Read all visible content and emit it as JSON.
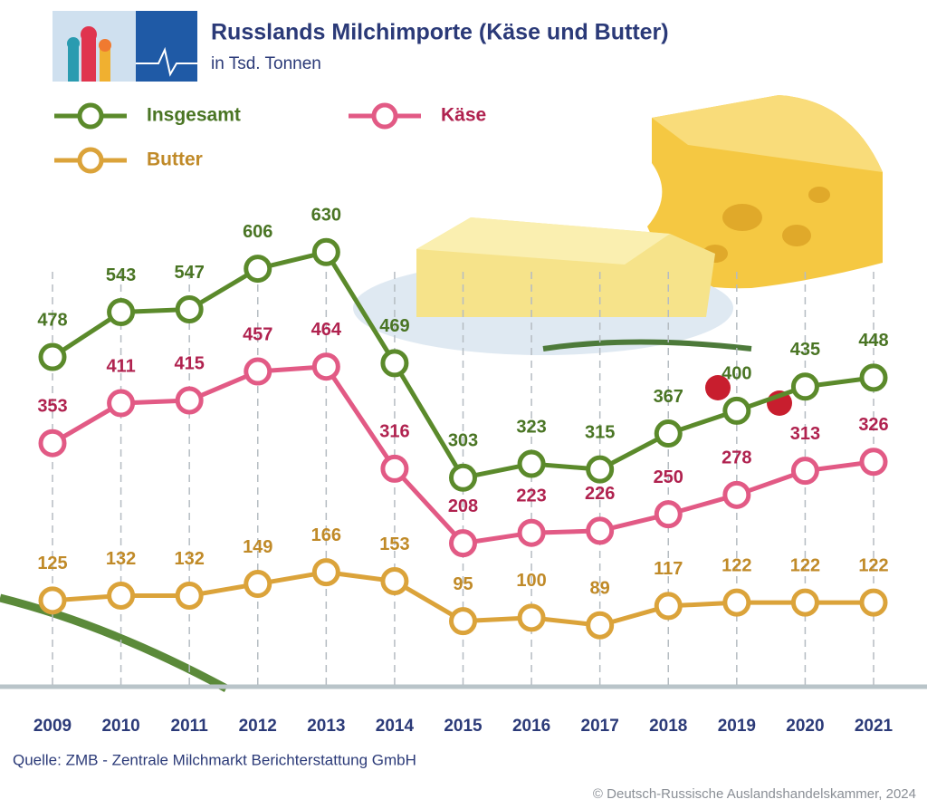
{
  "chart_data": {
    "type": "line",
    "title": "Russlands Milchimporte (Käse und Butter)",
    "subtitle": "in Tsd. Tonnen",
    "categories": [
      "2009",
      "2010",
      "2011",
      "2012",
      "2013",
      "2014",
      "2015",
      "2016",
      "2017",
      "2018",
      "2019",
      "2020",
      "2021"
    ],
    "series": [
      {
        "name": "Insgesamt",
        "color": "#5b8a2b",
        "label_color": "#4a7524",
        "values": [
          478,
          543,
          547,
          606,
          630,
          469,
          303,
          323,
          315,
          367,
          400,
          435,
          448
        ]
      },
      {
        "name": "Käse",
        "color": "#e25a85",
        "label_color": "#b0224f",
        "values": [
          353,
          411,
          415,
          457,
          464,
          316,
          208,
          223,
          226,
          250,
          278,
          313,
          326
        ]
      },
      {
        "name": "Butter",
        "color": "#dba33a",
        "label_color": "#c08a28",
        "values": [
          125,
          132,
          132,
          149,
          166,
          153,
          95,
          100,
          89,
          117,
          122,
          122,
          122
        ]
      }
    ],
    "ylim": [
      0,
      700
    ],
    "source": "Quelle: ZMB - Zentrale Milchmarkt Berichterstattung GmbH",
    "credit": "© Deutsch-Russische Auslandshandelskammer, 2024"
  }
}
